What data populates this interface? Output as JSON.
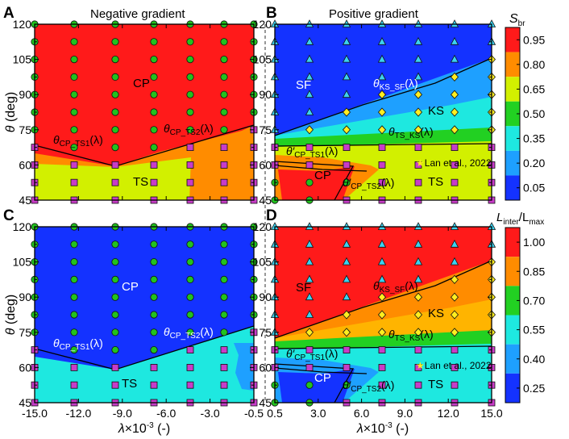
{
  "chart_data": [
    {
      "panel": "A",
      "type": "heatmap",
      "title": "Negative gradient",
      "xlabel": "",
      "ylabel": "θ (deg)",
      "xlim": [
        -15.0,
        -0.5
      ],
      "ylim": [
        45,
        120
      ],
      "xticks": [
        "-15.0",
        "-12.0",
        "-9.0",
        "-6.0",
        "-3.0",
        "-0.5"
      ],
      "yticks": [
        "45",
        "60",
        "75",
        "90",
        "105",
        "120"
      ],
      "colorbar": "S_br",
      "regions": [
        "CP",
        "TS"
      ],
      "curves": [
        "θCP_TS1(λ)",
        "θCP_TS2(λ)"
      ],
      "marker_legend": {
        "green circle": "CP",
        "magenta square": "TS"
      }
    },
    {
      "panel": "B",
      "type": "heatmap",
      "title": "Positive gradient",
      "xlabel": "",
      "ylabel": "",
      "xlim": [
        0.5,
        15.0
      ],
      "ylim": [
        45,
        120
      ],
      "xticks": [
        "0.5",
        "3.0",
        "6.0",
        "9.0",
        "12.0",
        "15.0"
      ],
      "yticks": [
        "45",
        "60",
        "75",
        "90",
        "105",
        "120"
      ],
      "colorbar": "S_br",
      "regions": [
        "SF",
        "KS",
        "CP",
        "TS"
      ],
      "curves": [
        "θKS_SF(λ)",
        "θTS_KS(λ)",
        "θ'CP_TS1(λ)",
        "θ'CP_TS2(λ)"
      ],
      "annotation": "Lan et al., 2022"
    },
    {
      "panel": "C",
      "type": "heatmap",
      "title": "",
      "xlabel": "λ×10⁻³ (-)",
      "ylabel": "θ (deg)",
      "xlim": [
        -15.0,
        -0.5
      ],
      "ylim": [
        45,
        120
      ],
      "xticks": [
        "-15.0",
        "-12.0",
        "-9.0",
        "-6.0",
        "-3.0",
        "-0.5"
      ],
      "yticks": [
        "45",
        "60",
        "75",
        "90",
        "105",
        "120"
      ],
      "colorbar": "L_inter/L_max",
      "regions": [
        "CP",
        "TS"
      ],
      "curves": [
        "θCP_TS1(λ)",
        "θCP_TS2(λ)"
      ]
    },
    {
      "panel": "D",
      "type": "heatmap",
      "title": "",
      "xlabel": "λ×10⁻³ (-)",
      "ylabel": "",
      "xlim": [
        0.5,
        15.0
      ],
      "ylim": [
        45,
        120
      ],
      "xticks": [
        "0.5",
        "3.0",
        "6.0",
        "9.0",
        "12.0",
        "15.0"
      ],
      "yticks": [
        "45",
        "60",
        "75",
        "90",
        "105",
        "120"
      ],
      "colorbar": "L_inter/L_max",
      "regions": [
        "SF",
        "KS",
        "CP",
        "TS"
      ],
      "curves": [
        "θKS_SF(λ)",
        "θTS_KS(λ)",
        "θ'CP_TS1(λ)",
        "θ'CP_TS2(λ)"
      ],
      "annotation": "Lan et al., 2022"
    }
  ],
  "text": {
    "panel_a": "A",
    "panel_b": "B",
    "panel_c": "C",
    "panel_d": "D",
    "title_left": "Negative gradient",
    "title_right": "Positive gradient",
    "ylabel_var": "θ",
    "ylabel_unit": " (deg)",
    "xlabel_var": "λ",
    "xlabel_rest": "×10",
    "xlabel_exp": "-3",
    "xlabel_unit": " (-)",
    "region_cp": "CP",
    "region_ts": "TS",
    "region_sf": "SF",
    "region_ks": "KS",
    "curve_theta": "θ",
    "sub_cp_ts1": "CP_TS1",
    "sub_cp_ts2": "CP_TS2",
    "sub_ks_sf": "KS_SF",
    "sub_ts_ks": "TS_KS",
    "lam_paren": "(λ)",
    "prime_theta": "θ′",
    "lan": "Lan et al., 2022",
    "cb_top_s": "S",
    "cb_top_s_sub": "br",
    "cb_bottom_l": "L",
    "cb_bottom_l_sub1": "inter",
    "cb_bottom_l_slash": "/L",
    "cb_bottom_l_sub2": "max",
    "ticks_neg": [
      "-15.0",
      "-12.0",
      "-9.0",
      "-6.0",
      "-3.0",
      "-0.5"
    ],
    "ticks_pos": [
      "0.5",
      "3.0",
      "6.0",
      "9.0",
      "12.0",
      "15.0"
    ],
    "ticks_y": [
      "45",
      "60",
      "75",
      "90",
      "105",
      "120"
    ],
    "cb1_ticks": [
      "0.95",
      "0.80",
      "0.65",
      "0.50",
      "0.35",
      "0.20",
      "0.05"
    ],
    "cb2_ticks": [
      "1.00",
      "0.85",
      "0.70",
      "0.55",
      "0.40",
      "0.25"
    ]
  },
  "colors": {
    "red": "#ff1a1a",
    "orange": "#ff8c00",
    "amber": "#ffb400",
    "lime": "#d2f000",
    "green": "#22d022",
    "cyan": "#1ee8e0",
    "sky": "#1ea0ff",
    "blue": "#1432ff",
    "tick_red": "#ff1a1a",
    "marker_green": "#22c21e",
    "marker_magenta": "#c83cc8",
    "marker_cyan": "#3cd2f0",
    "marker_yellow": "#ffee20"
  }
}
